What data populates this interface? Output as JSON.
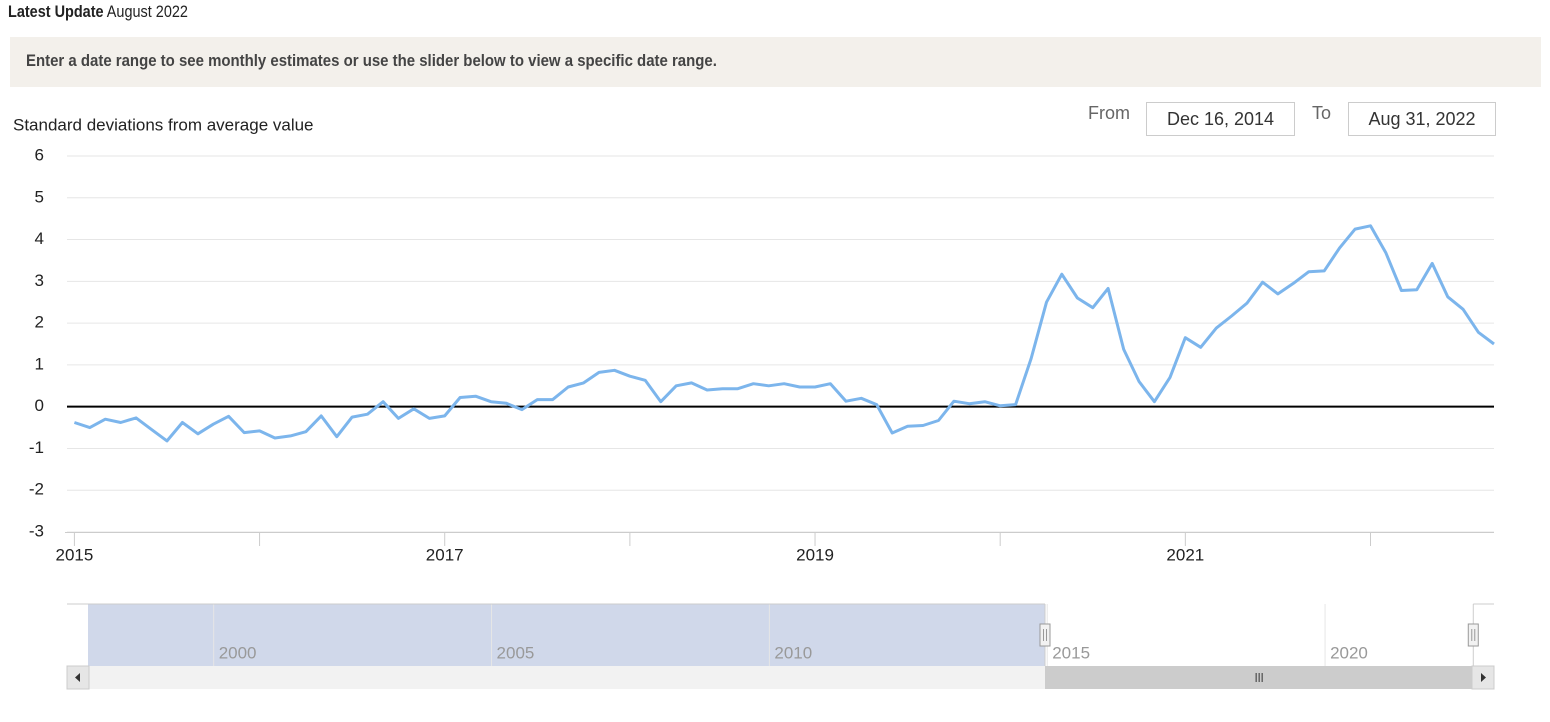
{
  "header": {
    "label": "Latest Update",
    "date": "August 2022"
  },
  "banner": "Enter a date range to see monthly estimates or use the slider below to view a specific date range.",
  "range": {
    "from_label": "From",
    "from": "Dec 16, 2014",
    "to_label": "To",
    "to": "Aug 31, 2022"
  },
  "chart_data": {
    "type": "line",
    "y_label": "Standard deviations from average value",
    "x": [
      2015,
      2015.083,
      2015.167,
      2015.25,
      2015.333,
      2015.417,
      2015.5,
      2015.583,
      2015.667,
      2015.75,
      2015.833,
      2015.917,
      2016,
      2016.083,
      2016.167,
      2016.25,
      2016.333,
      2016.417,
      2016.5,
      2016.583,
      2016.667,
      2016.75,
      2016.833,
      2016.917,
      2017,
      2017.083,
      2017.167,
      2017.25,
      2017.333,
      2017.417,
      2017.5,
      2017.583,
      2017.667,
      2017.75,
      2017.833,
      2017.917,
      2018,
      2018.083,
      2018.167,
      2018.25,
      2018.333,
      2018.417,
      2018.5,
      2018.583,
      2018.667,
      2018.75,
      2018.833,
      2018.917,
      2019,
      2019.083,
      2019.167,
      2019.25,
      2019.333,
      2019.417,
      2019.5,
      2019.583,
      2019.667,
      2019.75,
      2019.833,
      2019.917,
      2020,
      2020.083,
      2020.167,
      2020.25,
      2020.333,
      2020.417,
      2020.5,
      2020.583,
      2020.667,
      2020.75,
      2020.833,
      2020.917,
      2021,
      2021.083,
      2021.167,
      2021.25,
      2021.333,
      2021.417,
      2021.5,
      2021.583,
      2021.667,
      2021.75,
      2021.833,
      2021.917,
      2022,
      2022.083,
      2022.167,
      2022.25,
      2022.333,
      2022.417,
      2022.5,
      2022.583,
      2022.667
    ],
    "series": [
      {
        "color": "#7cb5ec",
        "values": [
          -0.38,
          -0.5,
          -0.3,
          -0.38,
          -0.27,
          -0.55,
          -0.82,
          -0.38,
          -0.65,
          -0.42,
          -0.23,
          -0.62,
          -0.58,
          -0.75,
          -0.7,
          -0.6,
          -0.22,
          -0.72,
          -0.25,
          -0.18,
          0.12,
          -0.28,
          -0.05,
          -0.28,
          -0.22,
          0.22,
          0.25,
          0.12,
          0.08,
          -0.07,
          0.17,
          0.17,
          0.47,
          0.57,
          0.82,
          0.87,
          0.73,
          0.63,
          0.12,
          0.5,
          0.57,
          0.4,
          0.43,
          0.43,
          0.55,
          0.5,
          0.55,
          0.47,
          0.47,
          0.55,
          0.13,
          0.2,
          0.05,
          -0.63,
          -0.47,
          -0.45,
          -0.33,
          0.13,
          0.07,
          0.12,
          0.02,
          0.05,
          1.15,
          2.5,
          3.17,
          2.6,
          2.37,
          2.83,
          1.37,
          0.6,
          0.12,
          0.7,
          1.65,
          1.42,
          1.88,
          2.17,
          2.48,
          2.98,
          2.7,
          2.95,
          3.23,
          3.25,
          3.8,
          4.25,
          4.33,
          3.68,
          2.78,
          2.8,
          3.43,
          2.63,
          2.33,
          1.78,
          1.5
        ]
      }
    ],
    "xlim": [
      2014.96,
      2022.667
    ],
    "xticks": [
      2015,
      {
        "value": 2016,
        "label": null
      },
      2017,
      {
        "value": 2018,
        "label": null
      },
      2019,
      {
        "value": 2020,
        "label": null
      },
      2021,
      {
        "value": 2022,
        "label": null
      }
    ],
    "ylim": [
      -3,
      6
    ],
    "yticks": [
      -3,
      -2,
      -1,
      0,
      1,
      2,
      3,
      4,
      5,
      6
    ],
    "grid": true,
    "navigator": {
      "xlim": [
        1997.36,
        2023.04
      ],
      "xticks": [
        2000,
        2005,
        2010,
        2015,
        2020
      ]
    }
  }
}
